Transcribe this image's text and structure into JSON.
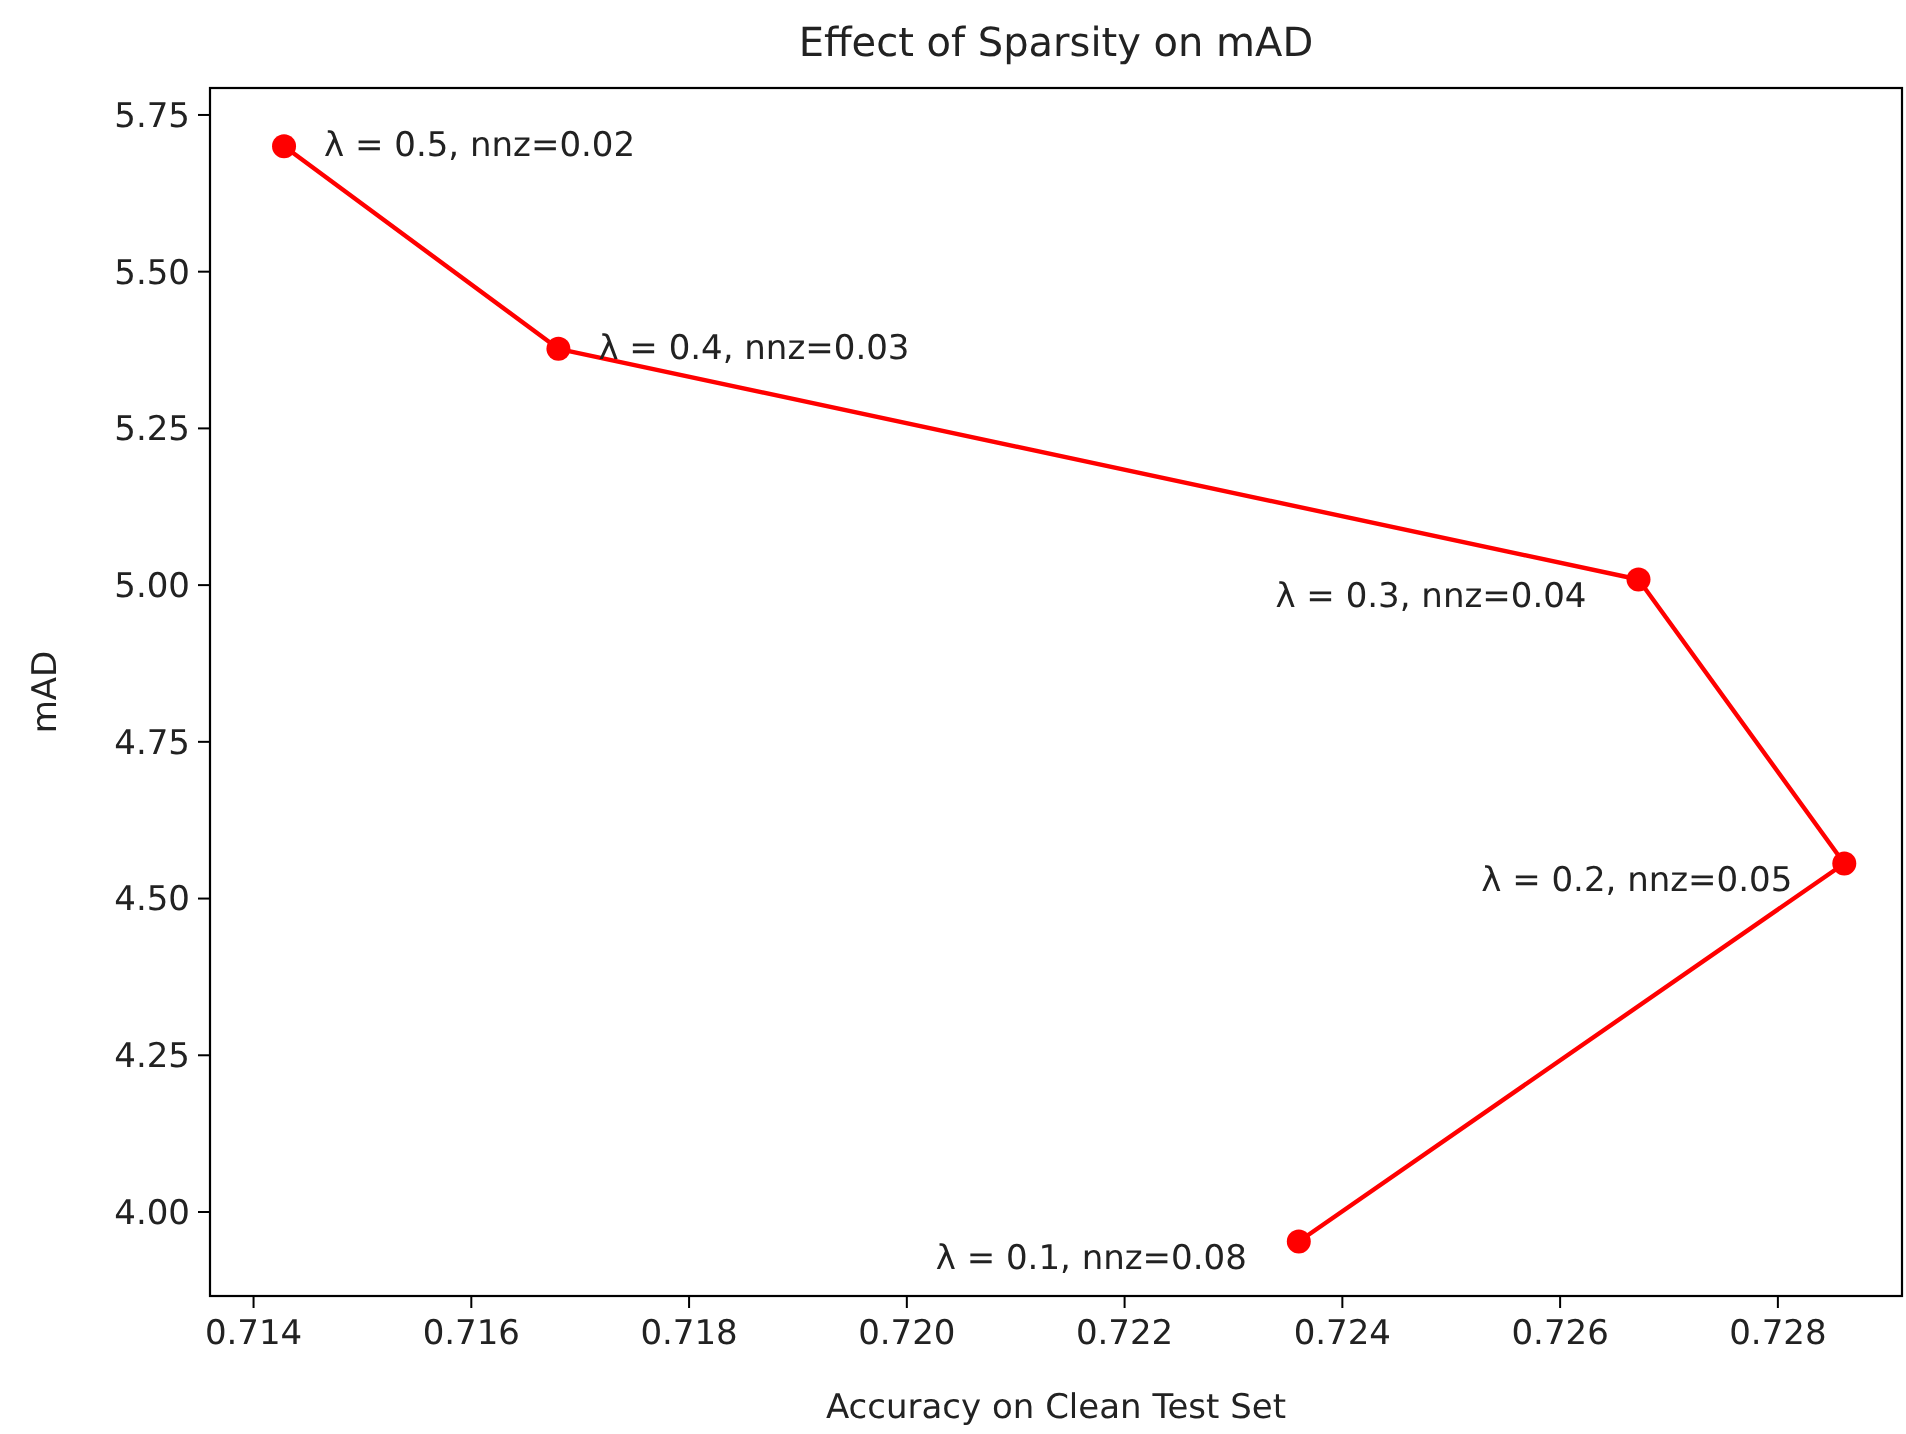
{
  "chart_data": {
    "type": "line",
    "title": "Effect of Sparsity on mAD",
    "xlabel": "Accuracy on Clean Test Set",
    "ylabel": "mAD",
    "x": [
      0.7236,
      0.72861,
      0.72672,
      0.7168,
      0.71428
    ],
    "series": [
      {
        "color": "#ff0000",
        "values": [
          3.953,
          4.556,
          5.009,
          5.377,
          5.7
        ]
      }
    ],
    "marker": "circle",
    "line_style": "solid",
    "grid": false,
    "xlim": [
      0.7136,
      0.72914
    ],
    "xticks": [
      {
        "value": 0.714,
        "label": "0.714"
      },
      {
        "value": 0.716,
        "label": "0.716"
      },
      {
        "value": 0.718,
        "label": "0.718"
      },
      {
        "value": 0.72,
        "label": "0.720"
      },
      {
        "value": 0.722,
        "label": "0.722"
      },
      {
        "value": 0.724,
        "label": "0.724"
      },
      {
        "value": 0.726,
        "label": "0.726"
      },
      {
        "value": 0.728,
        "label": "0.728"
      }
    ],
    "ylim": [
      3.866,
      5.793
    ],
    "yticks": [
      {
        "value": 4,
        "label": "4.00"
      },
      {
        "value": 4.25,
        "label": "4.25"
      },
      {
        "value": 4.5,
        "label": "4.50"
      },
      {
        "value": 4.75,
        "label": "4.75"
      },
      {
        "value": 5,
        "label": "5.00"
      },
      {
        "value": 5.25,
        "label": "5.25"
      },
      {
        "value": 5.5,
        "label": "5.50"
      },
      {
        "value": 5.75,
        "label": "5.75"
      }
    ],
    "annotations": [
      {
        "text": "λ = 0.1, nnz=0.08",
        "x": 0.7236,
        "y": 3.953
      },
      {
        "text": "λ = 0.2, nnz=0.05",
        "x": 0.72861,
        "y": 4.556
      },
      {
        "text": "λ = 0.3, nnz=0.04",
        "x": 0.72672,
        "y": 5.009
      },
      {
        "text": "λ = 0.4, nnz=0.03",
        "x": 0.7168,
        "y": 5.377
      },
      {
        "text": "λ = 0.5, nnz=0.02",
        "x": 0.71428,
        "y": 5.7
      }
    ]
  }
}
